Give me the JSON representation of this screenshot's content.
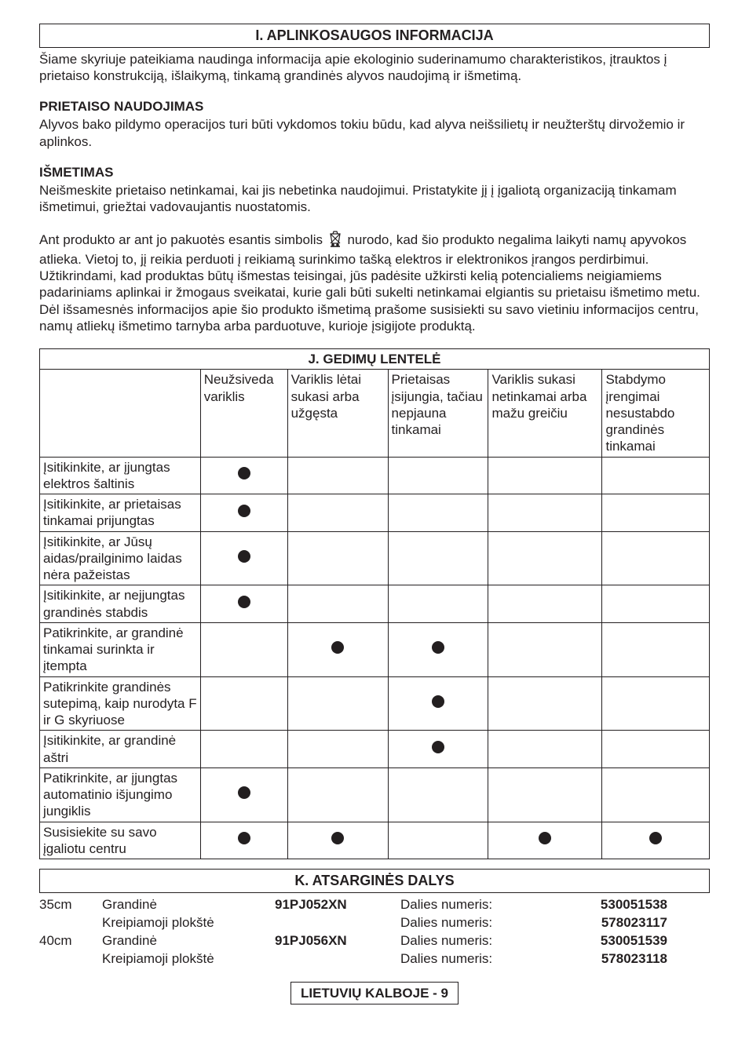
{
  "sectionI": {
    "title": "I. APLINKOSAUGOS INFORMACIJA",
    "intro": "Šiame skyriuje pateikiama naudinga informacija apie ekologinio suderinamumo charakteristikos, įtrauktos į prietaiso konstrukciją, išlaikymą, tinkamą grandinės alyvos naudojimą ir išmetimą.",
    "usage_heading": "PRIETAISO NAUDOJIMAS",
    "usage_text": "Alyvos bako pildymo operacijos turi būti vykdomos tokiu būdu, kad alyva neišsilietų ir neužterštų dirvožemio ir aplinkos.",
    "disposal_heading": "IŠMETIMAS",
    "disposal_text": "Neišmeskite prietaiso netinkamai, kai jis nebetinka naudojimui. Pristatykite jį į įgaliotą organizaciją tinkamam išmetimui, griežtai vadovaujantis nuostatomis.",
    "symbol_para_before": "Ant produkto ar ant jo pakuotės esantis simbolis ",
    "symbol_para_after": " nurodo, kad šio produkto negalima laikyti namų apyvokos atlieka. Vietoj to, jį reikia perduoti į reikiamą surinkimo tašką elektros ir elektronikos įrangos perdirbimui. Užtikrindami, kad produktas būtų išmestas teisingai, jūs padėsite užkirsti kelią potencialiems neigiamiems padariniams aplinkai ir žmogaus sveikatai, kurie gali būti sukelti netinkamai elgiantis su prietaisu išmetimo metu. Dėl išsamesnės informacijos apie šio produkto išmetimą prašome susisiekti su savo vietiniu informacijos centru, namų atliekų išmetimo tarnyba arba parduotuve, kurioje įsigijote produktą."
  },
  "sectionJ": {
    "title": "J. GEDIMŲ LENTELĖ",
    "headers": {
      "h1": "Neužsiveda variklis",
      "h2": "Variklis lėtai sukasi arba užgęsta",
      "h3": "Prietaisas įsijungia, tačiau nepjauna tinkamai",
      "h4": "Variklis sukasi netinkamai arba mažu greičiu",
      "h5": "Stabdymo įrengimai nesustabdo grandinės tinkamai"
    },
    "rows": [
      {
        "label": "Įsitikinkite, ar įjungtas elektros šaltinis",
        "dots": [
          true,
          false,
          false,
          false,
          false
        ]
      },
      {
        "label": "Įsitikinkite, ar prietaisas tinkamai prijungtas",
        "dots": [
          true,
          false,
          false,
          false,
          false
        ]
      },
      {
        "label": "Įsitikinkite, ar Jūsų aidas/prailginimo laidas nėra pažeistas",
        "dots": [
          true,
          false,
          false,
          false,
          false
        ]
      },
      {
        "label": "Įsitikinkite, ar neįjungtas grandinės stabdis",
        "dots": [
          true,
          false,
          false,
          false,
          false
        ]
      },
      {
        "label": "Patikrinkite, ar grandinė tinkamai surinkta ir įtempta",
        "dots": [
          false,
          true,
          true,
          false,
          false
        ]
      },
      {
        "label": "Patikrinkite grandinės sutepimą, kaip nurodyta F ir G skyriuose",
        "dots": [
          false,
          false,
          true,
          false,
          false
        ]
      },
      {
        "label": "Įsitikinkite, ar grandinė aštri",
        "dots": [
          false,
          false,
          true,
          false,
          false
        ]
      },
      {
        "label": "Patikrinkite, ar įjungtas automatinio išjungimo jungiklis",
        "dots": [
          true,
          false,
          false,
          false,
          false
        ]
      },
      {
        "label": "Susisiekite su savo įgaliotu centru",
        "dots": [
          true,
          true,
          false,
          true,
          true
        ]
      }
    ]
  },
  "sectionK": {
    "title": "K. ATSARGINĖS DALYS",
    "rows": [
      {
        "size": "35cm",
        "name1": "Grandinė",
        "name2": "Kreipiamoji plokštė",
        "code": "91PJ052XN",
        "label": "Dalies numeris:",
        "num1": "530051538",
        "num2": "578023117"
      },
      {
        "size": "40cm",
        "name1": "Grandinė",
        "name2": "Kreipiamoji plokštė",
        "code": "91PJ056XN",
        "label": "Dalies numeris:",
        "num1": "530051539",
        "num2": "578023118"
      }
    ]
  },
  "footer": "LIETUVIŲ KALBOJE - 9"
}
